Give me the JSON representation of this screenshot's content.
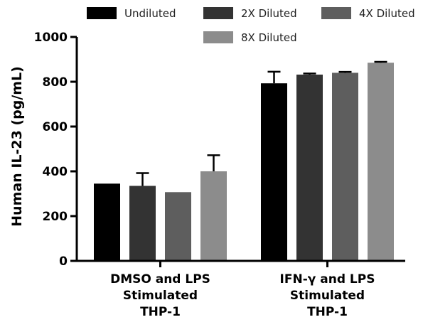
{
  "chart_data": {
    "type": "bar",
    "ylabel": "Human IL-23 (pg/mL)",
    "ylim": [
      0,
      1000
    ],
    "yticks": [
      "0",
      "200",
      "400",
      "600",
      "800",
      "1000"
    ],
    "categories": [
      [
        "DMSO and LPS",
        "Stimulated",
        "THP-1"
      ],
      [
        "IFN-γ and LPS",
        "Stimulated",
        "THP-1"
      ]
    ],
    "series": [
      {
        "name": "Undiluted",
        "color": "#000000",
        "values": [
          345,
          793
        ],
        "errors": [
          0,
          52
        ]
      },
      {
        "name": "2X Diluted",
        "color": "#333333",
        "values": [
          335,
          832
        ],
        "errors": [
          57,
          5
        ]
      },
      {
        "name": "4X Diluted",
        "color": "#5e5e5e",
        "values": [
          307,
          840
        ],
        "errors": [
          0,
          4
        ]
      },
      {
        "name": "8X Diluted",
        "color": "#8c8c8c",
        "values": [
          400,
          885
        ],
        "errors": [
          72,
          4
        ]
      }
    ],
    "error_bars": "upper",
    "legend_position": "top"
  }
}
